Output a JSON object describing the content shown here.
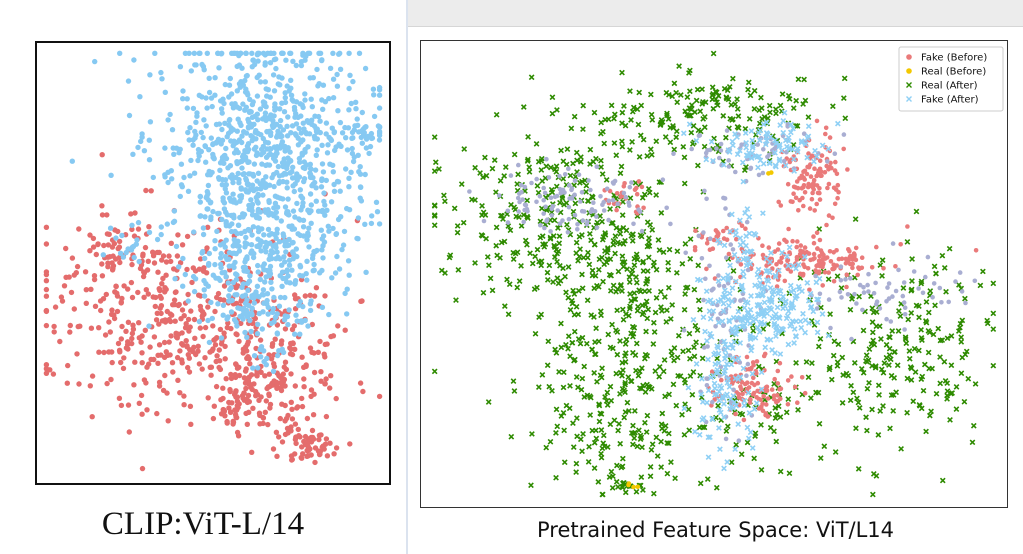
{
  "colors": {
    "fake_before": "#ea7a7a",
    "real_before": "#f3c800",
    "real_after": "#2e8b00",
    "fake_after": "#8fd0f5",
    "real_before_overlay": "#a9aed2",
    "left_fake": "#e46c6c",
    "left_real": "#86c9f2"
  },
  "left": {
    "caption": "CLIP:ViT-L/14"
  },
  "right": {
    "caption": "Pretrained Feature Space: ViT/L14",
    "legend": [
      {
        "label": "Fake (Before)",
        "marker": "dot",
        "color_key": "fake_before"
      },
      {
        "label": "Real (Before)",
        "marker": "dot",
        "color_key": "real_before"
      },
      {
        "label": "Real (After)",
        "marker": "x",
        "color_key": "real_after"
      },
      {
        "label": "Fake (After)",
        "marker": "x",
        "color_key": "fake_after"
      }
    ]
  },
  "chart_data": [
    {
      "type": "scatter",
      "title": "CLIP:ViT-L/14",
      "xlabel": "",
      "ylabel": "",
      "axes_visible": false,
      "series": [
        {
          "color_key": "left_fake",
          "marker": "dot",
          "clusters": [
            {
              "cx": 0.38,
              "cy": 0.62,
              "sx": 0.2,
              "sy": 0.11,
              "n": 430
            },
            {
              "cx": 0.7,
              "cy": 0.74,
              "sx": 0.1,
              "sy": 0.09,
              "n": 180
            },
            {
              "cx": 0.58,
              "cy": 0.81,
              "sx": 0.05,
              "sy": 0.05,
              "n": 70
            },
            {
              "cx": 0.78,
              "cy": 0.93,
              "sx": 0.035,
              "sy": 0.02,
              "n": 60
            },
            {
              "cx": 0.2,
              "cy": 0.46,
              "sx": 0.06,
              "sy": 0.04,
              "n": 40
            }
          ]
        },
        {
          "color_key": "left_real",
          "marker": "dot",
          "clusters": [
            {
              "cx": 0.65,
              "cy": 0.24,
              "sx": 0.15,
              "sy": 0.14,
              "n": 900
            },
            {
              "cx": 0.65,
              "cy": 0.5,
              "sx": 0.1,
              "sy": 0.07,
              "n": 200
            },
            {
              "cx": 0.63,
              "cy": 0.62,
              "sx": 0.1,
              "sy": 0.03,
              "n": 80
            },
            {
              "cx": 0.94,
              "cy": 0.2,
              "sx": 0.015,
              "sy": 0.012,
              "n": 20
            },
            {
              "cx": 0.25,
              "cy": 0.45,
              "sx": 0.03,
              "sy": 0.02,
              "n": 15
            },
            {
              "cx": 0.67,
              "cy": 0.72,
              "sx": 0.03,
              "sy": 0.02,
              "n": 15
            }
          ]
        }
      ]
    },
    {
      "type": "scatter",
      "title": "Pretrained Feature Space: ViT/L14",
      "xlabel": "",
      "ylabel": "",
      "axes_visible": false,
      "legend_position": "top-right",
      "series": [
        {
          "name": "Real (After)",
          "color_key": "real_after",
          "marker": "x",
          "clusters": [
            {
              "cx": 0.2,
              "cy": 0.36,
              "sx": 0.1,
              "sy": 0.1,
              "n": 280
            },
            {
              "cx": 0.49,
              "cy": 0.15,
              "sx": 0.1,
              "sy": 0.05,
              "n": 180
            },
            {
              "cx": 0.34,
              "cy": 0.66,
              "sx": 0.08,
              "sy": 0.14,
              "n": 300
            },
            {
              "cx": 0.82,
              "cy": 0.66,
              "sx": 0.1,
              "sy": 0.11,
              "n": 240
            },
            {
              "cx": 0.34,
              "cy": 0.87,
              "sx": 0.07,
              "sy": 0.05,
              "n": 80
            },
            {
              "cx": 0.57,
              "cy": 0.8,
              "sx": 0.05,
              "sy": 0.08,
              "n": 60
            },
            {
              "cx": 0.35,
              "cy": 0.46,
              "sx": 0.04,
              "sy": 0.05,
              "n": 60
            },
            {
              "cx": 0.35,
              "cy": 0.97,
              "sx": 0.012,
              "sy": 0.012,
              "n": 12
            }
          ]
        },
        {
          "name": "Fake (Before)",
          "color_key": "fake_before",
          "marker": "dot",
          "clusters": [
            {
              "cx": 0.66,
              "cy": 0.47,
              "sx": 0.07,
              "sy": 0.025,
              "n": 170
            },
            {
              "cx": 0.67,
              "cy": 0.28,
              "sx": 0.025,
              "sy": 0.05,
              "n": 110
            },
            {
              "cx": 0.57,
              "cy": 0.75,
              "sx": 0.035,
              "sy": 0.03,
              "n": 110
            },
            {
              "cx": 0.34,
              "cy": 0.33,
              "sx": 0.025,
              "sy": 0.018,
              "n": 25
            },
            {
              "cx": 0.52,
              "cy": 0.42,
              "sx": 0.03,
              "sy": 0.015,
              "n": 25
            }
          ]
        },
        {
          "name": "Real (Before)",
          "color_key": "real_before_overlay",
          "marker": "dot",
          "clusters": [
            {
              "cx": 0.25,
              "cy": 0.34,
              "sx": 0.07,
              "sy": 0.035,
              "n": 110
            },
            {
              "cx": 0.58,
              "cy": 0.23,
              "sx": 0.07,
              "sy": 0.025,
              "n": 60
            },
            {
              "cx": 0.8,
              "cy": 0.55,
              "sx": 0.07,
              "sy": 0.04,
              "n": 60
            },
            {
              "cx": 0.52,
              "cy": 0.58,
              "sx": 0.03,
              "sy": 0.15,
              "n": 80
            }
          ]
        },
        {
          "name": "Fake (After)",
          "color_key": "fake_after",
          "marker": "x",
          "clusters": [
            {
              "cx": 0.58,
              "cy": 0.57,
              "sx": 0.05,
              "sy": 0.05,
              "n": 220
            },
            {
              "cx": 0.52,
              "cy": 0.73,
              "sx": 0.03,
              "sy": 0.09,
              "n": 110
            },
            {
              "cx": 0.6,
              "cy": 0.22,
              "sx": 0.06,
              "sy": 0.03,
              "n": 90
            },
            {
              "cx": 0.55,
              "cy": 0.43,
              "sx": 0.02,
              "sy": 0.04,
              "n": 30
            }
          ]
        },
        {
          "name": "Real (Before)",
          "color_key": "real_before",
          "marker": "dot",
          "clusters": [
            {
              "cx": 0.6,
              "cy": 0.28,
              "sx": 0.004,
              "sy": 0.004,
              "n": 2
            },
            {
              "cx": 0.36,
              "cy": 0.97,
              "sx": 0.006,
              "sy": 0.005,
              "n": 4
            }
          ]
        }
      ]
    }
  ]
}
